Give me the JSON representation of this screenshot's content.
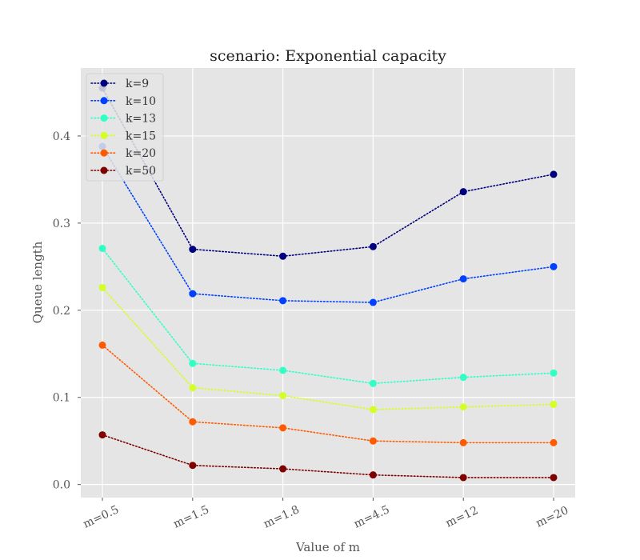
{
  "chart_data": {
    "type": "line",
    "title": "scenario: Exponential capacity",
    "xlabel": "Value of m",
    "ylabel": "Queue length",
    "categories": [
      "m=0.5",
      "m=1.5",
      "m=1.8",
      "m=4.5",
      "m=12",
      "m=20"
    ],
    "yticks": [
      "0.0",
      "0.1",
      "0.2",
      "0.3",
      "0.4"
    ],
    "ylim": [
      -0.015,
      0.478
    ],
    "grid": true,
    "legend_position": "top-left",
    "series": [
      {
        "name": "k=9",
        "color": "#00007f",
        "values": [
          0.455,
          0.27,
          0.262,
          0.273,
          0.336,
          0.356
        ]
      },
      {
        "name": "k=10",
        "color": "#0040ff",
        "values": [
          0.388,
          0.219,
          0.211,
          0.209,
          0.236,
          0.25
        ]
      },
      {
        "name": "k=13",
        "color": "#30ffc6",
        "values": [
          0.271,
          0.139,
          0.131,
          0.116,
          0.123,
          0.128
        ]
      },
      {
        "name": "k=15",
        "color": "#d4ff26",
        "values": [
          0.226,
          0.111,
          0.102,
          0.086,
          0.089,
          0.092
        ]
      },
      {
        "name": "k=20",
        "color": "#ff5a00",
        "values": [
          0.16,
          0.072,
          0.065,
          0.05,
          0.048,
          0.048
        ]
      },
      {
        "name": "k=50",
        "color": "#7f0000",
        "values": [
          0.057,
          0.022,
          0.018,
          0.011,
          0.008,
          0.008
        ]
      }
    ]
  }
}
